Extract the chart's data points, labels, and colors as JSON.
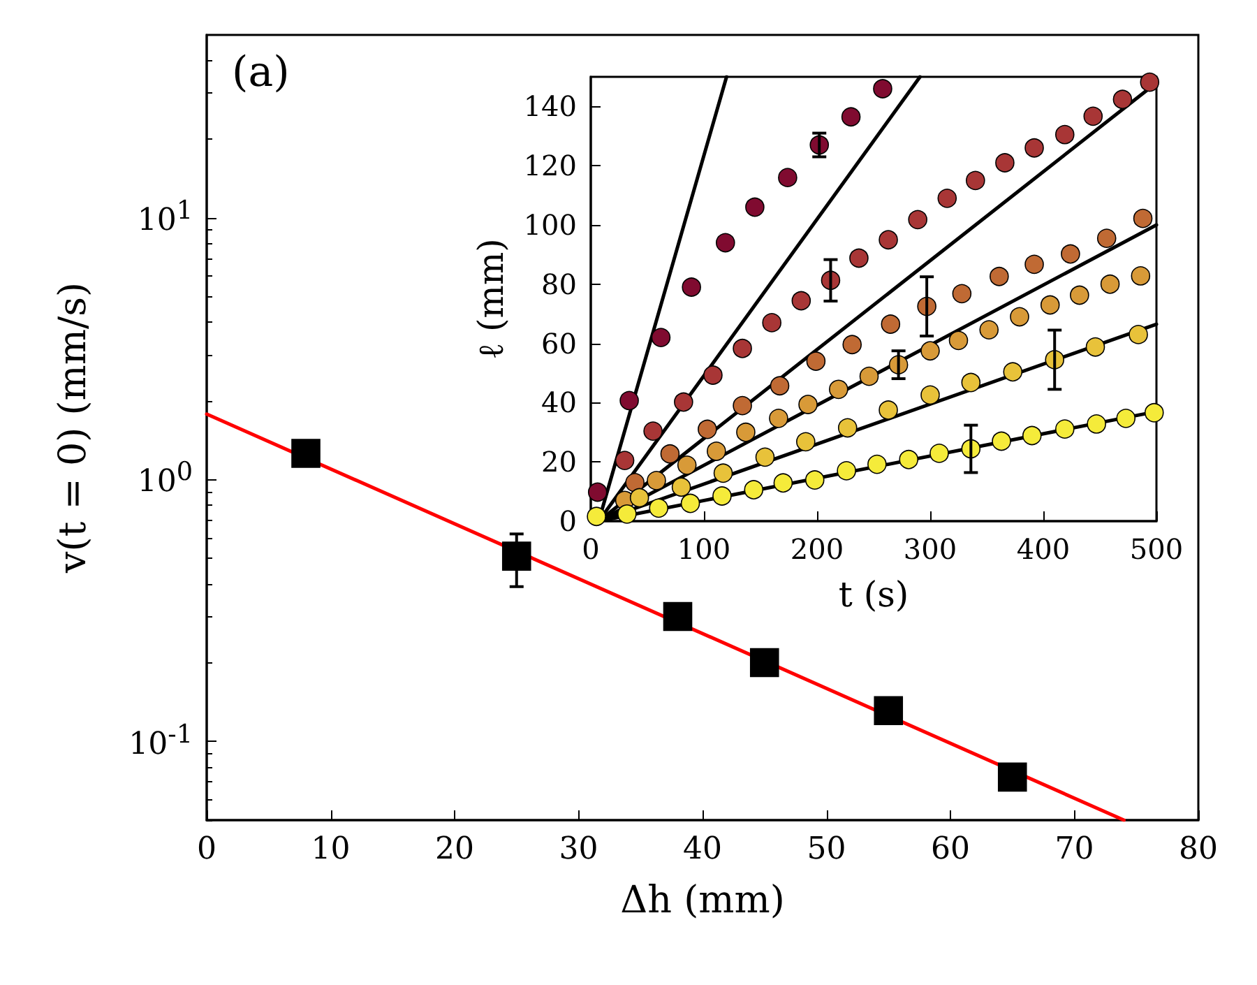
{
  "chart_data": [
    {
      "type": "scatter",
      "xlabel": "Δh (mm)",
      "ylabel": "v(t = 0) (mm/s)",
      "annotations": [
        "(a)"
      ],
      "log": "y",
      "xlim": [
        0,
        80
      ],
      "xticks": [
        0,
        10,
        20,
        30,
        40,
        50,
        60,
        70,
        80
      ],
      "ylim": [
        0.05,
        50
      ],
      "yticks": [
        {
          "value": 0.1,
          "label": "10$^{-1}$"
        },
        {
          "value": 1,
          "label": "10$^{0}$"
        },
        {
          "value": 10,
          "label": "10$^{1}$"
        }
      ],
      "series": [
        {
          "marker": "square",
          "color": "#000000",
          "x": [
            8,
            25,
            38,
            45,
            55,
            65
          ],
          "values": [
            1.26,
            0.51,
            0.3,
            0.2,
            0.131,
            0.073
          ],
          "errors": [
            null,
            [
              0.39,
              0.62
            ],
            null,
            null,
            null,
            null
          ]
        },
        {
          "type": "line",
          "color": "#ff0000",
          "x": [
            0,
            74
          ],
          "values": [
            1.78,
            0.05
          ]
        }
      ]
    },
    {
      "type": "scatter",
      "xlabel": "t (s)",
      "ylabel": "ℓ (mm)",
      "xlim": [
        0,
        500
      ],
      "xticks": [
        0,
        100,
        200,
        300,
        400,
        500
      ],
      "ylim": [
        0,
        150
      ],
      "yticks": [
        0,
        20,
        40,
        60,
        80,
        100,
        120,
        140
      ],
      "series": [
        {
          "marker": "circle",
          "color": "#800b30",
          "x": [
            6,
            34,
            62,
            89,
            119,
            145,
            174,
            202,
            230,
            258
          ],
          "values": [
            9.8,
            40.7,
            62,
            79,
            94,
            106,
            116,
            127,
            136.5,
            146
          ],
          "errors": [
            null,
            null,
            null,
            null,
            null,
            null,
            null,
            4,
            null,
            null
          ]
        },
        {
          "marker": "circle",
          "color": "#a83636",
          "x": [
            30,
            55,
            82,
            108,
            134,
            160,
            186,
            212,
            237,
            263,
            289,
            315,
            340,
            366,
            392,
            419,
            444,
            470,
            494
          ],
          "values": [
            20.5,
            30.4,
            40.2,
            49.3,
            58.3,
            67,
            74.4,
            81.3,
            88.8,
            95,
            101.8,
            109,
            115,
            121,
            126,
            130.5,
            136.7,
            142.4,
            148.2
          ],
          "errors": [
            null,
            null,
            null,
            null,
            null,
            null,
            null,
            7,
            null,
            null,
            null,
            null,
            null,
            null,
            null,
            null,
            null,
            null,
            null
          ]
        },
        {
          "marker": "circle",
          "color": "#c06a34",
          "x": [
            39,
            70,
            103,
            134,
            167,
            199,
            231,
            265,
            297,
            328,
            361,
            392,
            424,
            456,
            488
          ],
          "values": [
            13,
            22.7,
            31,
            39,
            45.7,
            54,
            59.6,
            66.5,
            72.5,
            76.8,
            82.6,
            86.7,
            90.2,
            95.5,
            102.2
          ],
          "errors": [
            null,
            null,
            null,
            null,
            null,
            null,
            null,
            null,
            10,
            null,
            null,
            null,
            null,
            null,
            null
          ]
        },
        {
          "marker": "circle",
          "color": "#d89a38",
          "x": [
            30,
            58,
            85,
            111,
            137,
            166,
            192,
            219,
            246,
            272,
            300,
            325,
            352,
            379,
            406,
            432,
            459,
            486
          ],
          "values": [
            7,
            13.7,
            18.9,
            23.6,
            30,
            34.7,
            39.4,
            44.5,
            48.9,
            52.8,
            57.5,
            61,
            64.6,
            69,
            73,
            76.3,
            80,
            82.8
          ],
          "errors": [
            null,
            null,
            null,
            null,
            null,
            null,
            null,
            null,
            null,
            4.7,
            null,
            null,
            null,
            null,
            null,
            null,
            null,
            null
          ]
        },
        {
          "marker": "circle",
          "color": "#e8c23a",
          "x": [
            43,
            80,
            117,
            154,
            190,
            227,
            263,
            300,
            336,
            373,
            410,
            446,
            484
          ],
          "values": [
            7.9,
            11.5,
            16.2,
            21.6,
            26.8,
            31.5,
            37.5,
            42.6,
            46.8,
            50.4,
            54.5,
            58.8,
            63
          ],
          "errors": [
            null,
            null,
            null,
            null,
            null,
            null,
            null,
            null,
            null,
            null,
            10,
            null,
            null
          ]
        },
        {
          "marker": "circle",
          "color": "#f5eb3a",
          "x": [
            5,
            32,
            60,
            88,
            116,
            144,
            170,
            198,
            226,
            253,
            281,
            308,
            336,
            363,
            390,
            419,
            447,
            473,
            498
          ],
          "values": [
            1.6,
            2.4,
            4.4,
            6,
            8.5,
            10.6,
            12.9,
            13.9,
            17,
            19.2,
            20.8,
            22.9,
            24.4,
            27,
            28.9,
            31.1,
            32.8,
            34.7,
            36.6
          ],
          "errors": [
            null,
            null,
            null,
            null,
            null,
            null,
            null,
            null,
            null,
            null,
            null,
            null,
            8,
            null,
            null,
            null,
            null,
            null,
            null
          ]
        },
        {
          "type": "line",
          "color": "#000000",
          "x": [
            7,
            120
          ],
          "values": [
            0,
            150
          ]
        },
        {
          "type": "line",
          "color": "#000000",
          "x": [
            7,
            291
          ],
          "values": [
            0,
            150
          ]
        },
        {
          "type": "line",
          "color": "#000000",
          "x": [
            7,
            500
          ],
          "values": [
            0,
            148
          ]
        },
        {
          "type": "line",
          "color": "#000000",
          "x": [
            7,
            500
          ],
          "values": [
            0,
            100
          ]
        },
        {
          "type": "line",
          "color": "#000000",
          "x": [
            7,
            500
          ],
          "values": [
            0,
            66.5
          ]
        },
        {
          "type": "line",
          "color": "#000000",
          "x": [
            7,
            500
          ],
          "values": [
            0,
            37
          ]
        }
      ]
    }
  ]
}
